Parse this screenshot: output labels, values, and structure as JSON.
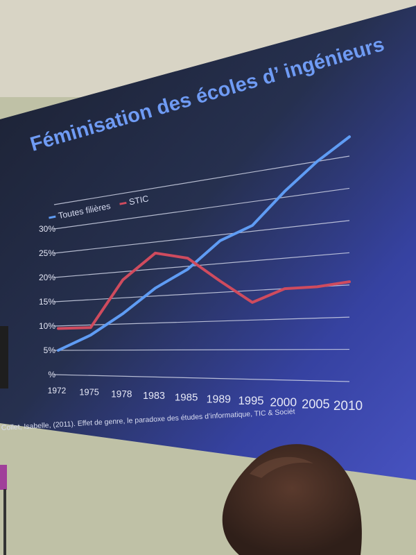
{
  "slide": {
    "title": "Féminisation des écoles d’ ingénieurs",
    "source": "Collet, Isabelle, (2011). Effet de genre, le paradoxe des études d’informatique, TIC & Sociét",
    "colors": {
      "background_top": "#1c2030",
      "background_bottom": "#404aa6",
      "title": "#6f9bf4",
      "grid": "#cfd3e6"
    }
  },
  "chart_data": {
    "type": "line",
    "title": "Féminisation des écoles d’ ingénieurs",
    "xlabel": "",
    "ylabel": "",
    "categories": [
      "1972",
      "1975",
      "1978",
      "1983",
      "1985",
      "1989",
      "1995",
      "2000",
      "2005",
      "2010"
    ],
    "y_tick_labels": [
      "%",
      "5%",
      "10%",
      "15%",
      "20%",
      "25%",
      "30%"
    ],
    "ylim": [
      0,
      35
    ],
    "grid": true,
    "legend_position": "top-left",
    "series": [
      {
        "name": "Toutes filières",
        "color": "#5f9cf4",
        "values": [
          5,
          8,
          12,
          16.5,
          19.5,
          24,
          26,
          31,
          35,
          38
        ]
      },
      {
        "name": "STIC",
        "color": "#cf4b5e",
        "values": [
          9.5,
          9.5,
          18.5,
          23,
          21.5,
          17,
          13,
          15,
          15,
          15.5
        ]
      }
    ]
  }
}
